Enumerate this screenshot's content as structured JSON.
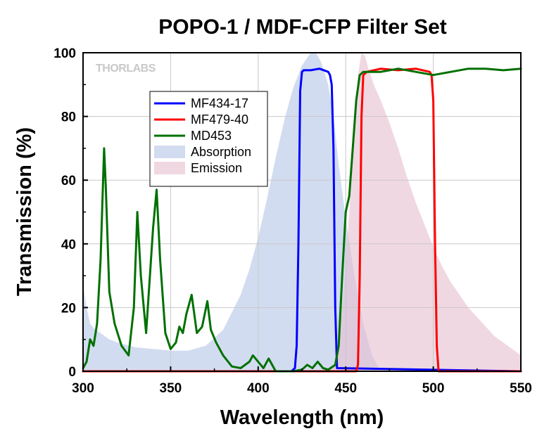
{
  "chart_data": {
    "type": "line",
    "title": "POPO-1 / MDF-CFP Filter Set",
    "xlabel": "Wavelength (nm)",
    "ylabel": "Transmission (%)",
    "xlim": [
      300,
      550
    ],
    "ylim": [
      0,
      100
    ],
    "xticks": [
      300,
      350,
      400,
      450,
      500,
      550
    ],
    "yticks": [
      0,
      20,
      40,
      60,
      80,
      100
    ],
    "grid": true,
    "legend_position": "upper-left",
    "watermark": "THORLABS",
    "series": [
      {
        "name": "MF434-17",
        "kind": "line",
        "color": "#0000ff",
        "x": [
          300,
          419,
          421,
          422,
          423,
          424,
          425,
          426,
          430,
          435,
          440,
          441,
          442,
          443,
          444,
          445,
          550
        ],
        "y": [
          0,
          0,
          1,
          8,
          40,
          88,
          94,
          94.5,
          94.5,
          95,
          94,
          93,
          90,
          70,
          20,
          1,
          0
        ]
      },
      {
        "name": "MF479-40",
        "kind": "line",
        "color": "#ff0000",
        "x": [
          300,
          456,
          457,
          458,
          459,
          460,
          462,
          470,
          480,
          490,
          498,
          499,
          500,
          501,
          502,
          503,
          550
        ],
        "y": [
          0,
          0,
          2,
          30,
          80,
          93,
          94,
          95,
          94.5,
          95,
          94,
          93,
          85,
          40,
          8,
          0,
          0
        ]
      },
      {
        "name": "MD453",
        "kind": "line",
        "color": "#007000",
        "x": [
          300,
          302,
          304,
          306,
          308,
          310,
          312,
          313,
          315,
          318,
          322,
          326,
          329,
          331,
          333,
          336,
          340,
          342,
          344,
          347,
          350,
          353,
          355,
          357,
          359,
          362,
          365,
          368,
          371,
          373,
          376,
          380,
          385,
          390,
          395,
          397,
          400,
          403,
          406,
          408,
          410,
          420,
          425,
          428,
          431,
          434,
          437,
          440,
          444,
          446,
          448,
          450,
          452,
          454,
          456,
          458,
          460,
          470,
          480,
          490,
          500,
          510,
          520,
          530,
          540,
          550
        ],
        "y": [
          1,
          3,
          10,
          8,
          15,
          35,
          70,
          58,
          25,
          15,
          8,
          5,
          20,
          50,
          30,
          12,
          45,
          57,
          35,
          12,
          7,
          9,
          14,
          12,
          18,
          24,
          12,
          14,
          22,
          13,
          9,
          5,
          1.5,
          1,
          3,
          5,
          3,
          1,
          4,
          2,
          0,
          0,
          0.5,
          2,
          1,
          3,
          1,
          0.5,
          2,
          8,
          30,
          50,
          55,
          70,
          85,
          93,
          94,
          94,
          95,
          94,
          93,
          94,
          95,
          95,
          94.5,
          95
        ]
      },
      {
        "name": "Absorption",
        "kind": "area",
        "color": "#b4c4e6",
        "x": [
          300,
          302,
          304,
          307,
          310,
          315,
          320,
          330,
          340,
          350,
          360,
          370,
          380,
          390,
          395,
          400,
          405,
          410,
          415,
          420,
          425,
          430,
          433,
          436,
          440,
          443,
          446,
          450,
          455,
          460,
          465,
          470
        ],
        "y": [
          27,
          20,
          15,
          13,
          12,
          10,
          9,
          7.5,
          7,
          6.5,
          6.5,
          8,
          13,
          24,
          32,
          42,
          54,
          67,
          79,
          89,
          96,
          100,
          100,
          97,
          90,
          80,
          65,
          48,
          30,
          15,
          5,
          0
        ]
      },
      {
        "name": "Emission",
        "kind": "area",
        "color": "#e6bece",
        "x": [
          440,
          443,
          446,
          449,
          452,
          455,
          457,
          459,
          461,
          463,
          466,
          470,
          475,
          480,
          485,
          490,
          495,
          500,
          505,
          510,
          515,
          520,
          525,
          530,
          535,
          540,
          545,
          550
        ],
        "y": [
          0,
          2,
          8,
          25,
          50,
          80,
          93,
          100,
          99,
          95,
          90,
          85,
          78,
          70,
          61,
          53,
          46,
          39,
          33,
          28,
          24,
          20,
          17,
          14,
          11,
          9,
          7,
          5
        ]
      }
    ]
  }
}
